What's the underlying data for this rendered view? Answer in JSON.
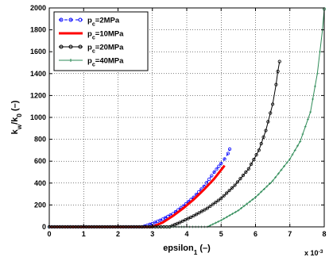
{
  "chart_data": {
    "type": "line",
    "xlabel": "epsilon",
    "xlabel_sub": "1",
    "xlabel_suffix": " (–)",
    "ylabel_parts": [
      "k",
      "w",
      "/k",
      "0",
      " (–)"
    ],
    "x_multiplier_base": "x 10",
    "x_multiplier_exp": "-3",
    "xlim": [
      0,
      8
    ],
    "ylim": [
      0,
      2000
    ],
    "xticks": [
      "0",
      "1",
      "2",
      "3",
      "4",
      "5",
      "6",
      "7",
      "8"
    ],
    "yticks": [
      "0",
      "200",
      "400",
      "600",
      "800",
      "1000",
      "1200",
      "1400",
      "1600",
      "1800",
      "2000"
    ],
    "grid": true,
    "legend_position": "top-left",
    "series": [
      {
        "name": "p_c=2MPa",
        "name_main": "p",
        "name_sub": "c",
        "name_rest": "=2MPa",
        "color": "#0000ff",
        "style": "dashed-circle",
        "points": [
          [
            0,
            0
          ],
          [
            1,
            0
          ],
          [
            2,
            0
          ],
          [
            2.7,
            0
          ],
          [
            3.0,
            30
          ],
          [
            3.3,
            70
          ],
          [
            3.6,
            120
          ],
          [
            3.9,
            190
          ],
          [
            4.2,
            270
          ],
          [
            4.5,
            370
          ],
          [
            4.8,
            500
          ],
          [
            5.0,
            580
          ],
          [
            5.1,
            620
          ],
          [
            5.2,
            670
          ],
          [
            5.25,
            710
          ]
        ]
      },
      {
        "name": "p_c=10MPa",
        "name_main": "p",
        "name_sub": "c",
        "name_rest": "=10MPa",
        "color": "#ff0000",
        "style": "thick-solid",
        "points": [
          [
            0,
            0
          ],
          [
            1,
            0
          ],
          [
            2,
            0
          ],
          [
            3.0,
            0
          ],
          [
            3.3,
            40
          ],
          [
            3.6,
            100
          ],
          [
            3.9,
            170
          ],
          [
            4.2,
            250
          ],
          [
            4.5,
            340
          ],
          [
            4.8,
            440
          ],
          [
            5.0,
            520
          ],
          [
            5.1,
            560
          ]
        ]
      },
      {
        "name": "p_c=20MPa",
        "name_main": "p",
        "name_sub": "c",
        "name_rest": "=20MPa",
        "color": "#000000",
        "style": "solid-circle",
        "points": [
          [
            0,
            0
          ],
          [
            1,
            0
          ],
          [
            2,
            0
          ],
          [
            3.0,
            0
          ],
          [
            3.5,
            0
          ],
          [
            3.8,
            40
          ],
          [
            4.2,
            100
          ],
          [
            4.6,
            170
          ],
          [
            5.0,
            260
          ],
          [
            5.4,
            380
          ],
          [
            5.8,
            530
          ],
          [
            6.1,
            700
          ],
          [
            6.3,
            880
          ],
          [
            6.5,
            1120
          ],
          [
            6.6,
            1300
          ],
          [
            6.65,
            1420
          ],
          [
            6.7,
            1510
          ]
        ]
      },
      {
        "name": "p_c=40MPa",
        "name_main": "p",
        "name_sub": "c",
        "name_rest": "=40MPa",
        "color": "#2e8b57",
        "style": "solid-plus",
        "points": [
          [
            0,
            0
          ],
          [
            1,
            0
          ],
          [
            2,
            0
          ],
          [
            3,
            0
          ],
          [
            4,
            0
          ],
          [
            4.6,
            0
          ],
          [
            5.0,
            60
          ],
          [
            5.5,
            150
          ],
          [
            6.0,
            270
          ],
          [
            6.5,
            420
          ],
          [
            7.0,
            620
          ],
          [
            7.3,
            780
          ],
          [
            7.6,
            1050
          ],
          [
            7.8,
            1400
          ],
          [
            7.95,
            1800
          ],
          [
            8.0,
            1990
          ]
        ]
      }
    ]
  }
}
